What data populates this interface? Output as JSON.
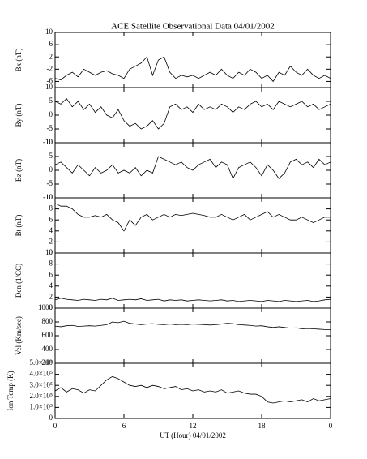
{
  "chart_data": [
    {
      "type": "line",
      "title": "ACE Satellite Observational Data  04/01/2002",
      "ylabel": "Bx (nT)",
      "color": "#000000",
      "xlim": [
        0,
        24
      ],
      "xticks": [
        0,
        6,
        12,
        18,
        {
          "value": 24,
          "label": "0"
        }
      ],
      "ylim": [
        -8,
        10
      ],
      "yticks": [
        -6,
        -2,
        2,
        6,
        10
      ],
      "x": [
        0,
        0.5,
        1,
        1.5,
        2,
        2.5,
        3,
        3.5,
        4,
        4.5,
        5,
        5.5,
        6,
        6.5,
        7,
        7.5,
        8,
        8.5,
        9,
        9.5,
        10,
        10.5,
        11,
        11.5,
        12,
        12.5,
        13,
        13.5,
        14,
        14.5,
        15,
        15.5,
        16,
        16.5,
        17,
        17.5,
        18,
        18.5,
        19,
        19.5,
        20,
        20.5,
        21,
        21.5,
        22,
        22.5,
        23,
        23.5,
        24
      ],
      "values": [
        -5,
        -5.5,
        -4,
        -3,
        -4.5,
        -2,
        -3,
        -4,
        -3,
        -2.5,
        -3.5,
        -4,
        -5,
        -2,
        -1,
        0,
        2,
        -4,
        1,
        2,
        -3,
        -5,
        -4,
        -4.5,
        -4,
        -5,
        -4,
        -3,
        -4,
        -2,
        -4,
        -5,
        -3,
        -4,
        -2,
        -3,
        -5,
        -4,
        -6,
        -3,
        -4,
        -1,
        -3,
        -4,
        -2,
        -4,
        -5,
        -4,
        -5
      ]
    },
    {
      "type": "line",
      "ylabel": "By (nT)",
      "color": "#000000",
      "xlim": [
        0,
        24
      ],
      "xticks": [
        0,
        6,
        12,
        18,
        {
          "value": 24,
          "label": "0"
        }
      ],
      "ylim": [
        -10,
        10
      ],
      "yticks": [
        -10,
        -5,
        0,
        5,
        10
      ],
      "x": [
        0,
        0.5,
        1,
        1.5,
        2,
        2.5,
        3,
        3.5,
        4,
        4.5,
        5,
        5.5,
        6,
        6.5,
        7,
        7.5,
        8,
        8.5,
        9,
        9.5,
        10,
        10.5,
        11,
        11.5,
        12,
        12.5,
        13,
        13.5,
        14,
        14.5,
        15,
        15.5,
        16,
        16.5,
        17,
        17.5,
        18,
        18.5,
        19,
        19.5,
        20,
        20.5,
        21,
        21.5,
        22,
        22.5,
        23,
        23.5,
        24
      ],
      "values": [
        5,
        4,
        6,
        3,
        5,
        2,
        4,
        1,
        3,
        0,
        -1,
        2,
        -2,
        -4,
        -3,
        -5,
        -4,
        -2,
        -5,
        -3,
        3,
        4,
        2,
        3,
        1,
        4,
        2,
        3,
        2,
        4,
        3,
        1,
        3,
        2,
        4,
        5,
        3,
        4,
        2,
        5,
        4,
        3,
        4,
        5,
        3,
        4,
        2,
        3,
        4
      ]
    },
    {
      "type": "line",
      "ylabel": "Bz (nT)",
      "color": "#000000",
      "xlim": [
        0,
        24
      ],
      "xticks": [
        0,
        6,
        12,
        18,
        {
          "value": 24,
          "label": "0"
        }
      ],
      "ylim": [
        -10,
        10
      ],
      "yticks": [
        -10,
        -5,
        0,
        5,
        10
      ],
      "x": [
        0,
        0.5,
        1,
        1.5,
        2,
        2.5,
        3,
        3.5,
        4,
        4.5,
        5,
        5.5,
        6,
        6.5,
        7,
        7.5,
        8,
        8.5,
        9,
        9.5,
        10,
        10.5,
        11,
        11.5,
        12,
        12.5,
        13,
        13.5,
        14,
        14.5,
        15,
        15.5,
        16,
        16.5,
        17,
        17.5,
        18,
        18.5,
        19,
        19.5,
        20,
        20.5,
        21,
        21.5,
        22,
        22.5,
        23,
        23.5,
        24
      ],
      "values": [
        2,
        3,
        1,
        -1,
        2,
        0,
        -2,
        1,
        -1,
        0,
        2,
        -1,
        0,
        -1,
        1,
        -2,
        0,
        -1,
        5,
        4,
        3,
        2,
        3,
        1,
        0,
        2,
        3,
        4,
        1,
        3,
        2,
        -3,
        1,
        2,
        3,
        1,
        -2,
        2,
        0,
        -3,
        -1,
        3,
        4,
        2,
        3,
        1,
        4,
        2,
        3
      ]
    },
    {
      "type": "line",
      "ylabel": "Bt (nT)",
      "color": "#000000",
      "xlim": [
        0,
        24
      ],
      "xticks": [
        0,
        6,
        12,
        18,
        {
          "value": 24,
          "label": "0"
        }
      ],
      "ylim": [
        0,
        10
      ],
      "yticks": [
        0,
        2,
        4,
        6,
        8,
        10
      ],
      "x": [
        0,
        0.5,
        1,
        1.5,
        2,
        2.5,
        3,
        3.5,
        4,
        4.5,
        5,
        5.5,
        6,
        6.5,
        7,
        7.5,
        8,
        8.5,
        9,
        9.5,
        10,
        10.5,
        11,
        11.5,
        12,
        12.5,
        13,
        13.5,
        14,
        14.5,
        15,
        15.5,
        16,
        16.5,
        17,
        17.5,
        18,
        18.5,
        19,
        19.5,
        20,
        20.5,
        21,
        21.5,
        22,
        22.5,
        23,
        23.5,
        24
      ],
      "values": [
        9,
        8.5,
        8.5,
        8,
        7,
        6.5,
        6.5,
        6.8,
        6.5,
        7,
        6,
        5.5,
        4,
        6,
        5,
        6.5,
        7,
        6,
        6.5,
        7,
        6.5,
        7,
        6.8,
        7,
        7.2,
        7,
        6.8,
        6.5,
        6.5,
        7,
        6.5,
        6,
        6.5,
        7,
        6,
        6.5,
        7,
        7.5,
        6.5,
        7,
        6.5,
        6,
        6,
        6.5,
        6,
        5.5,
        6,
        6.5,
        6.5
      ]
    },
    {
      "type": "line",
      "ylabel": "Den (1/CC)",
      "color": "#000000",
      "xlim": [
        0,
        24
      ],
      "xticks": [
        0,
        6,
        12,
        18,
        {
          "value": 24,
          "label": "0"
        }
      ],
      "ylim": [
        0,
        10
      ],
      "yticks": [
        0,
        2,
        4,
        6,
        8,
        10
      ],
      "x": [
        0,
        0.5,
        1,
        1.5,
        2,
        2.5,
        3,
        3.5,
        4,
        4.5,
        5,
        5.5,
        6,
        6.5,
        7,
        7.5,
        8,
        8.5,
        9,
        9.5,
        10,
        10.5,
        11,
        11.5,
        12,
        12.5,
        13,
        13.5,
        14,
        14.5,
        15,
        15.5,
        16,
        16.5,
        17,
        17.5,
        18,
        18.5,
        19,
        19.5,
        20,
        20.5,
        21,
        21.5,
        22,
        22.5,
        23,
        23.5,
        24
      ],
      "values": [
        1.5,
        1.8,
        1.6,
        1.5,
        1.4,
        1.6,
        1.5,
        1.4,
        1.6,
        1.5,
        1.8,
        1.4,
        1.5,
        1.6,
        1.5,
        1.7,
        1.4,
        1.5,
        1.6,
        1.3,
        1.5,
        1.4,
        1.5,
        1.3,
        1.4,
        1.5,
        1.4,
        1.3,
        1.4,
        1.5,
        1.3,
        1.4,
        1.2,
        1.3,
        1.4,
        1.3,
        1.2,
        1.4,
        1.3,
        1.2,
        1.4,
        1.3,
        1.2,
        1.3,
        1.4,
        1.2,
        1.3,
        1.5,
        1.6
      ]
    },
    {
      "type": "line",
      "ylabel": "Vel (Km/sec)",
      "color": "#000000",
      "xlim": [
        0,
        24
      ],
      "xticks": [
        0,
        6,
        12,
        18,
        {
          "value": 24,
          "label": "0"
        }
      ],
      "ylim": [
        200,
        1000
      ],
      "yticks": [
        200,
        400,
        600,
        800,
        1000
      ],
      "x": [
        0,
        0.5,
        1,
        1.5,
        2,
        2.5,
        3,
        3.5,
        4,
        4.5,
        5,
        5.5,
        6,
        6.5,
        7,
        7.5,
        8,
        8.5,
        9,
        9.5,
        10,
        10.5,
        11,
        11.5,
        12,
        12.5,
        13,
        13.5,
        14,
        14.5,
        15,
        15.5,
        16,
        16.5,
        17,
        17.5,
        18,
        18.5,
        19,
        19.5,
        20,
        20.5,
        21,
        21.5,
        22,
        22.5,
        23,
        23.5,
        24
      ],
      "values": [
        740,
        730,
        745,
        750,
        735,
        740,
        745,
        740,
        750,
        760,
        800,
        790,
        810,
        780,
        770,
        760,
        770,
        775,
        765,
        760,
        770,
        760,
        765,
        760,
        770,
        765,
        760,
        755,
        760,
        770,
        780,
        775,
        760,
        755,
        750,
        740,
        745,
        730,
        720,
        730,
        720,
        710,
        715,
        700,
        705,
        700,
        695,
        690,
        685
      ]
    },
    {
      "type": "line",
      "ylabel": "Ion Temp (K)",
      "xlabel": "UT (Hour)  04/01/2002",
      "color": "#000000",
      "xlim": [
        0,
        24
      ],
      "xticks": [
        0,
        6,
        12,
        18,
        {
          "value": 24,
          "label": "0"
        }
      ],
      "ylim": [
        0,
        500000
      ],
      "yticks": [
        0,
        {
          "value": 100000,
          "label": "1.0×10⁵"
        },
        {
          "value": 200000,
          "label": "2.0×10⁵"
        },
        {
          "value": 300000,
          "label": "3.0×10⁵"
        },
        {
          "value": 400000,
          "label": "4.0×10⁵"
        },
        {
          "value": 500000,
          "label": "5.0×10⁵"
        }
      ],
      "x": [
        0,
        0.5,
        1,
        1.5,
        2,
        2.5,
        3,
        3.5,
        4,
        4.5,
        5,
        5.5,
        6,
        6.5,
        7,
        7.5,
        8,
        8.5,
        9,
        9.5,
        10,
        10.5,
        11,
        11.5,
        12,
        12.5,
        13,
        13.5,
        14,
        14.5,
        15,
        15.5,
        16,
        16.5,
        17,
        17.5,
        18,
        18.5,
        19,
        19.5,
        20,
        20.5,
        21,
        21.5,
        22,
        22.5,
        23,
        23.5,
        24
      ],
      "values": [
        250000,
        280000,
        240000,
        270000,
        260000,
        230000,
        260000,
        250000,
        300000,
        350000,
        380000,
        360000,
        330000,
        300000,
        290000,
        300000,
        280000,
        300000,
        290000,
        270000,
        280000,
        290000,
        260000,
        270000,
        250000,
        260000,
        240000,
        250000,
        240000,
        260000,
        230000,
        240000,
        250000,
        230000,
        220000,
        220000,
        200000,
        150000,
        140000,
        150000,
        160000,
        150000,
        160000,
        170000,
        150000,
        180000,
        160000,
        170000,
        180000
      ]
    }
  ]
}
